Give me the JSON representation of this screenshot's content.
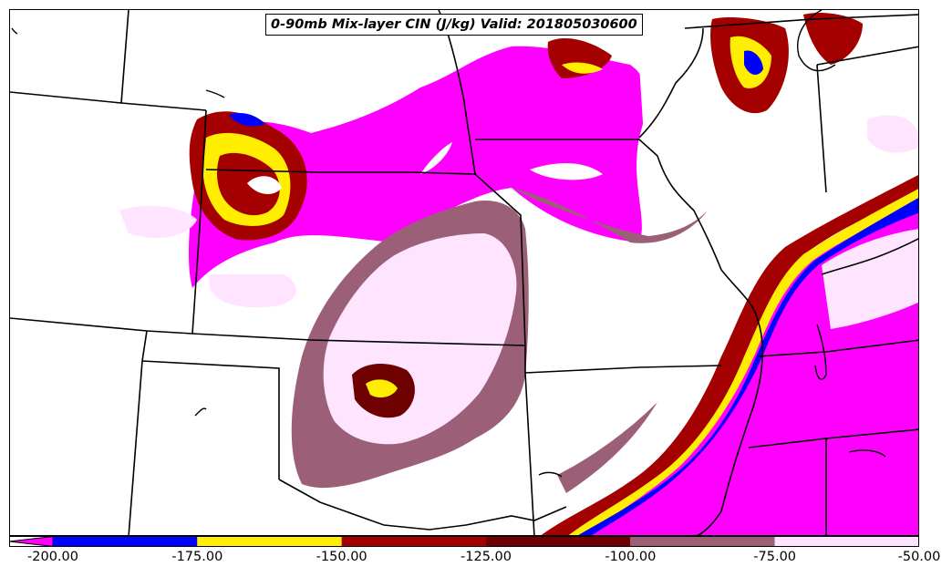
{
  "title": "0-90mb Mix-layer CIN (J/kg) Valid: 201805030600",
  "colorbar": {
    "ticks": [
      "-200.00",
      "-175.00",
      "-150.00",
      "-125.00",
      "-100.00",
      "-75.00",
      "-50.00"
    ],
    "bins": [
      {
        "range": [
          -200,
          -175
        ],
        "color": "#0000ff"
      },
      {
        "range": [
          -175,
          -150
        ],
        "color": "#ffee00"
      },
      {
        "range": [
          -150,
          -125
        ],
        "color": "#a50000"
      },
      {
        "range": [
          -125,
          -100
        ],
        "color": "#6e0000"
      },
      {
        "range": [
          -100,
          -75
        ],
        "color": "#9b6078"
      },
      {
        "range": [
          -75,
          -50
        ],
        "color": "#ffe4ff"
      }
    ],
    "under_color": "#ff00ff",
    "extend": "min"
  }
}
